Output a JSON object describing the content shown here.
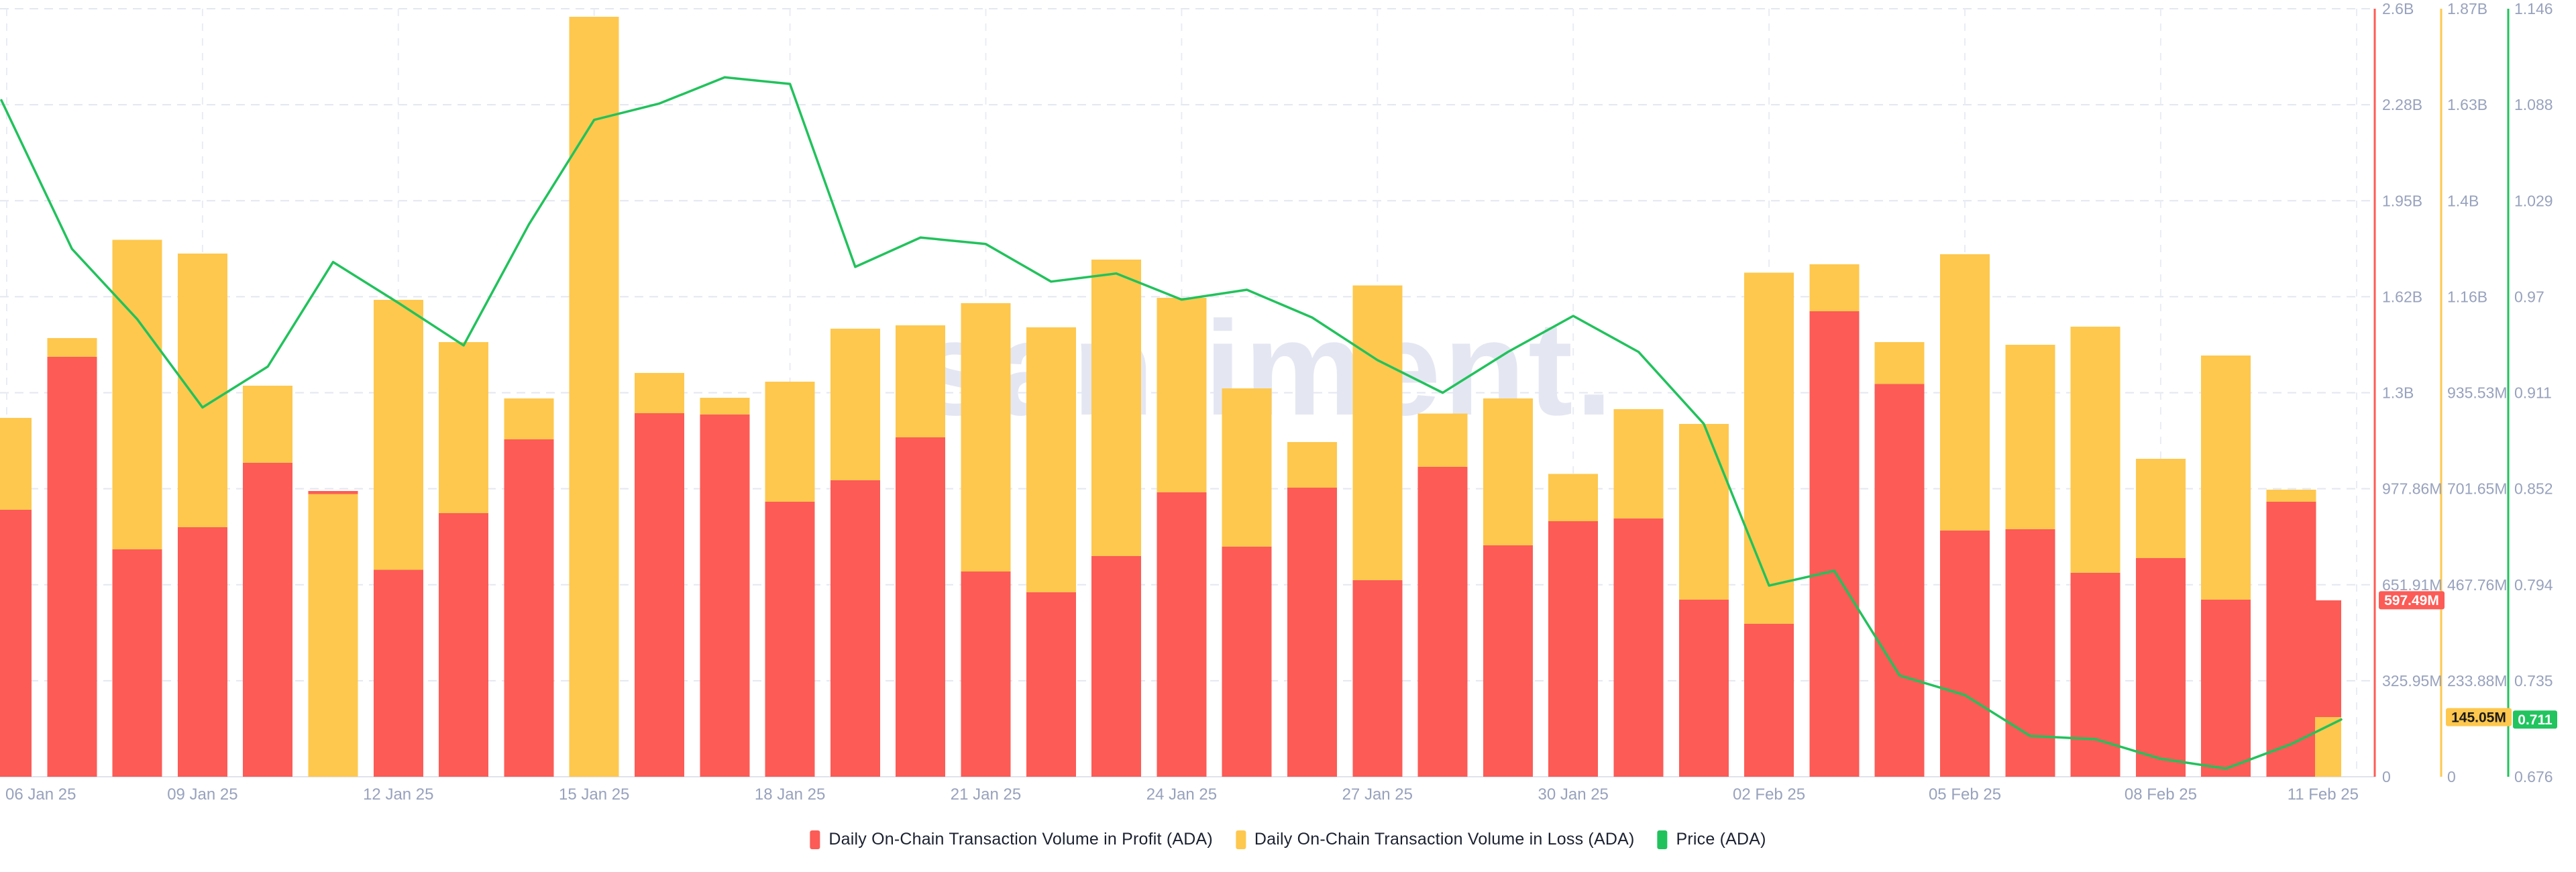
{
  "watermark": "santiment.",
  "legend": {
    "items": [
      {
        "label": "Daily On-Chain Transaction Volume in Profit (ADA)",
        "color": "#FC5B56"
      },
      {
        "label": "Daily On-Chain Transaction Volume in Loss (ADA)",
        "color": "#FEC84E"
      },
      {
        "label": "Price (ADA)",
        "color": "#21C25C"
      }
    ]
  },
  "chart_data": {
    "type": "bar",
    "subtype": "two overlaid bar series (own axes) + price line",
    "categories": [
      "06 Jan 25",
      "07 Jan 25",
      "08 Jan 25",
      "09 Jan 25",
      "10 Jan 25",
      "11 Jan 25",
      "12 Jan 25",
      "13 Jan 25",
      "14 Jan 25",
      "15 Jan 25",
      "16 Jan 25",
      "17 Jan 25",
      "18 Jan 25",
      "19 Jan 25",
      "20 Jan 25",
      "21 Jan 25",
      "22 Jan 25",
      "23 Jan 25",
      "24 Jan 25",
      "25 Jan 25",
      "26 Jan 25",
      "27 Jan 25",
      "28 Jan 25",
      "29 Jan 25",
      "30 Jan 25",
      "31 Jan 25",
      "01 Feb 25",
      "02 Feb 25",
      "03 Feb 25",
      "04 Feb 25",
      "05 Feb 25",
      "06 Feb 25",
      "07 Feb 25",
      "08 Feb 25",
      "09 Feb 25",
      "10 Feb 25",
      "11 Feb 25"
    ],
    "series": [
      {
        "name": "Daily On-Chain Transaction Volume in Profit (ADA)",
        "type": "bar",
        "axis": "profit",
        "color": "#FC5B56",
        "unit": "million ADA",
        "values": [
          904,
          1421,
          770,
          845,
          1063,
          967,
          700,
          892,
          1142,
          0,
          1231,
          1226,
          931,
          1004,
          1149,
          695,
          624,
          747,
          963,
          779,
          979,
          665,
          1049,
          783,
          865,
          874,
          599,
          518,
          1576,
          1329,
          833,
          838,
          690,
          740,
          600,
          931,
          597.49
        ]
      },
      {
        "name": "Daily On-Chain Transaction Volume in Loss (ADA)",
        "type": "bar",
        "axis": "loss",
        "color": "#FEC84E",
        "unit": "million ADA",
        "values": [
          874,
          1068,
          1307,
          1274,
          952,
          688,
          1161,
          1058,
          921,
          1850,
          983,
          923,
          962,
          1091,
          1099,
          1153,
          1094,
          1259,
          1166,
          946,
          815,
          1196,
          884,
          921,
          737,
          895,
          859,
          1227,
          1248,
          1058,
          1272,
          1052,
          1096,
          774,
          1026,
          699,
          145.05
        ]
      },
      {
        "name": "Price (ADA)",
        "type": "line",
        "axis": "price",
        "color": "#21C25C",
        "unit": "USD",
        "values": [
          1.09,
          0.999,
          0.956,
          0.902,
          0.927,
          0.991,
          0.966,
          0.94,
          1.014,
          1.078,
          1.088,
          1.104,
          1.1,
          0.988,
          1.006,
          1.002,
          0.979,
          0.984,
          0.968,
          0.974,
          0.957,
          0.931,
          0.911,
          0.936,
          0.958,
          0.936,
          0.892,
          0.793,
          0.802,
          0.738,
          0.726,
          0.701,
          0.699,
          0.687,
          0.681,
          0.696,
          0.711
        ]
      }
    ],
    "axes": {
      "profit": {
        "side": "right",
        "color": "#FC5B56",
        "min": 0,
        "max": 2600,
        "ticks": [
          "2.6B",
          "2.28B",
          "1.95B",
          "1.62B",
          "1.3B",
          "977.86M",
          "651.91M",
          "325.95M",
          "0"
        ]
      },
      "loss": {
        "side": "right",
        "color": "#FEC84E",
        "min": 0,
        "max": 1870,
        "ticks": [
          "1.87B",
          "1.63B",
          "1.4B",
          "1.16B",
          "935.53M",
          "701.65M",
          "467.76M",
          "233.88M",
          "0"
        ]
      },
      "price": {
        "side": "right",
        "color": "#21C25C",
        "min": 0.676,
        "max": 1.146,
        "ticks": [
          "1.146",
          "1.088",
          "1.029",
          "0.97",
          "0.911",
          "0.852",
          "0.794",
          "0.735",
          "0.676"
        ]
      }
    },
    "x_axis": {
      "tick_every": 3,
      "labels": [
        "06 Jan 25",
        "09 Jan 25",
        "12 Jan 25",
        "15 Jan 25",
        "18 Jan 25",
        "21 Jan 25",
        "24 Jan 25",
        "27 Jan 25",
        "30 Jan 25",
        "02 Feb 25",
        "05 Feb 25",
        "08 Feb 25",
        "11 Feb 25"
      ]
    },
    "badges": [
      {
        "axis": "profit",
        "text": "597.49M",
        "value": 597.49,
        "bg": "#FC5B56",
        "fg": "#FFFFFF"
      },
      {
        "axis": "loss",
        "text": "145.05M",
        "value": 145.05,
        "bg": "#FEC84E",
        "fg": "#1A1A1A"
      },
      {
        "axis": "price",
        "text": "0.711",
        "value": 0.711,
        "bg": "#21C45E",
        "fg": "#FFFFFF"
      }
    ],
    "legend_position": "bottom-center",
    "grid": {
      "horizontal_lines": 9,
      "vertical_lines_at_ticks": true,
      "style": "dashed"
    }
  },
  "colors": {
    "background": "#FFFFFF",
    "axis_label": "#98A2BD",
    "grid_line": "#E3E7F1",
    "baseline": "#DFE3ED",
    "legend_text": "#1B2130",
    "watermark": "#E4E7F2"
  }
}
